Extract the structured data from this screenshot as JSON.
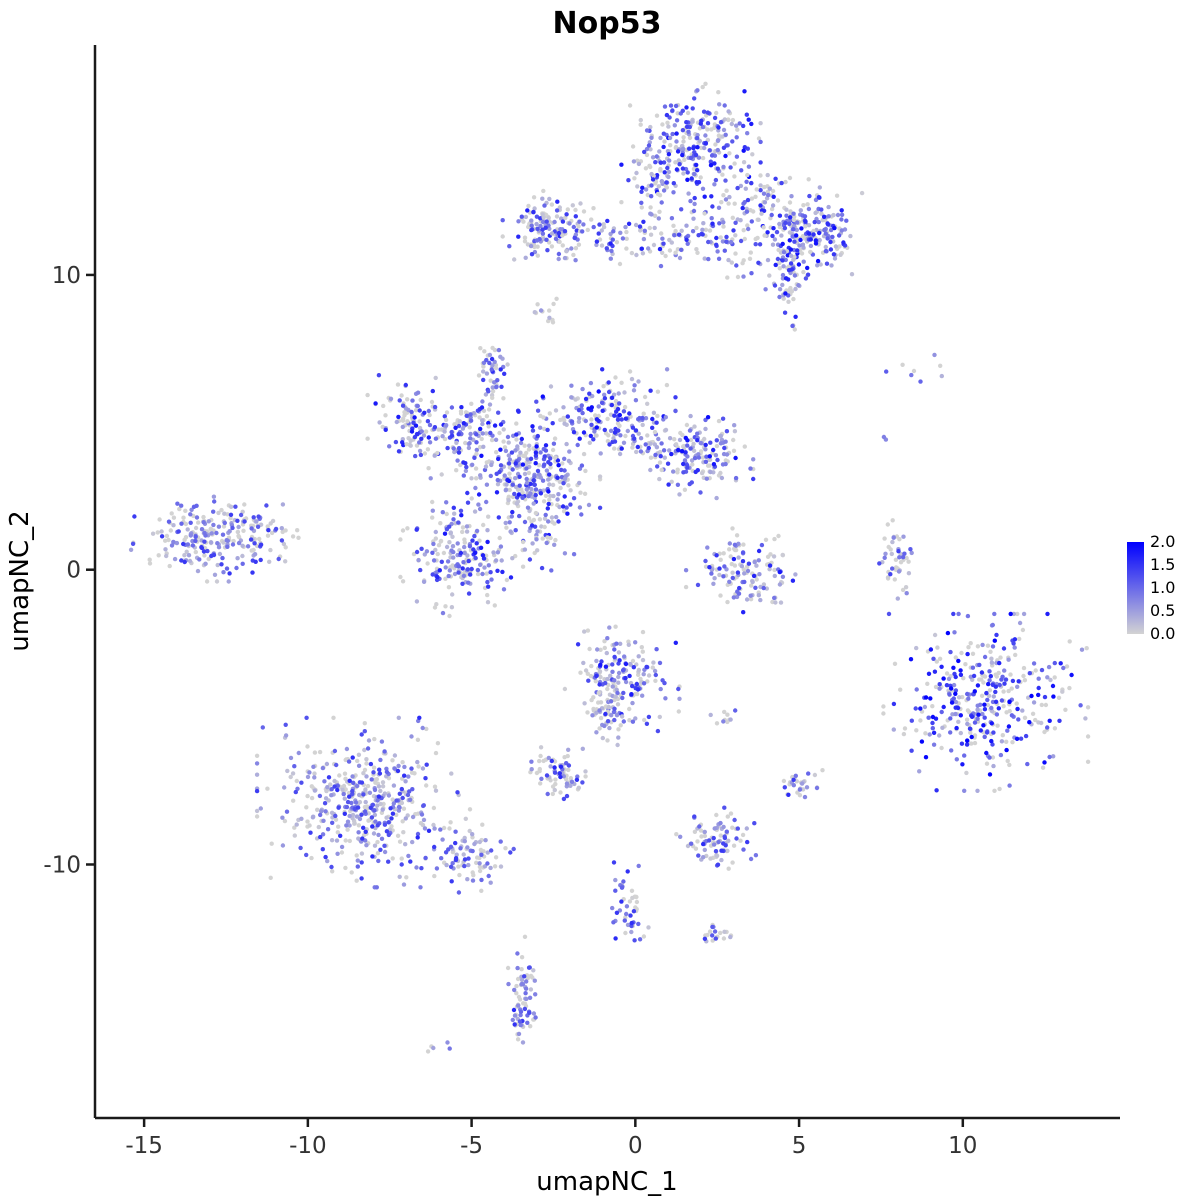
{
  "chart_data": {
    "type": "scatter",
    "title": "Nop53",
    "xlabel": "umapNC_1",
    "ylabel": "umapNC_2",
    "xlim": [
      -16.5,
      14.8
    ],
    "ylim": [
      -18.6,
      17.8
    ],
    "x_ticks": [
      {
        "label": "-15",
        "value": -15
      },
      {
        "label": "-10",
        "value": -10
      },
      {
        "label": "-5",
        "value": -5
      },
      {
        "label": "0",
        "value": 0
      },
      {
        "label": "5",
        "value": 5
      },
      {
        "label": "10",
        "value": 10
      }
    ],
    "y_ticks": [
      {
        "label": "-10",
        "value": -10
      },
      {
        "label": "0",
        "value": 0
      },
      {
        "label": "10",
        "value": 10
      }
    ],
    "grid": false,
    "legend": {
      "position": "right",
      "ticks": [
        {
          "label": "2.0",
          "value": 2.0
        },
        {
          "label": "1.5",
          "value": 1.5
        },
        {
          "label": "1.0",
          "value": 1.0
        },
        {
          "label": "0.5",
          "value": 0.5
        },
        {
          "label": "0.0",
          "value": 0.0
        }
      ]
    },
    "color_scale": {
      "low": "#D3D3D3",
      "high": "#0000FF",
      "domain": [
        0,
        2
      ]
    },
    "point_radius": 2.2,
    "seed": 12345,
    "clusters": [
      {
        "cx": 1.7,
        "cy": 14.3,
        "sx": 0.85,
        "sy": 0.95,
        "n": 280,
        "zero": 0.25,
        "max": 1.9,
        "pow": 1.2
      },
      {
        "cx": 0.6,
        "cy": 13.2,
        "sx": 0.4,
        "sy": 0.8,
        "n": 40,
        "zero": 0.3,
        "max": 1.7,
        "pow": 1.2
      },
      {
        "cx": 3.8,
        "cy": 12.4,
        "sx": 0.8,
        "sy": 0.55,
        "n": 90,
        "zero": 0.3,
        "max": 1.7,
        "pow": 1.2
      },
      {
        "cx": 5.3,
        "cy": 11.4,
        "sx": 0.65,
        "sy": 0.55,
        "n": 190,
        "zero": 0.22,
        "max": 1.9,
        "pow": 1.1
      },
      {
        "cx": -2.7,
        "cy": 11.6,
        "sx": 0.55,
        "sy": 0.5,
        "n": 130,
        "zero": 0.3,
        "max": 1.7,
        "pow": 1.2
      },
      {
        "cx": -0.3,
        "cy": 11.3,
        "sx": 1.5,
        "sy": 0.4,
        "n": 100,
        "zero": 0.3,
        "max": 1.7,
        "pow": 1.2
      },
      {
        "cx": 2.2,
        "cy": 11.3,
        "sx": 0.9,
        "sy": 0.4,
        "n": 60,
        "zero": 0.3,
        "max": 1.7,
        "pow": 1.2
      },
      {
        "cx": 4.7,
        "cy": 9.9,
        "sx": 0.3,
        "sy": 0.7,
        "n": 70,
        "zero": 0.3,
        "max": 1.8,
        "pow": 1.2
      },
      {
        "cx": 3.3,
        "cy": 10.4,
        "sx": 0.5,
        "sy": 0.3,
        "n": 15,
        "zero": 0.4,
        "max": 1.4,
        "pow": 1.2
      },
      {
        "cx": -2.8,
        "cy": 8.6,
        "sx": 0.2,
        "sy": 0.35,
        "n": 12,
        "zero": 0.4,
        "max": 1.5,
        "pow": 1.2
      },
      {
        "cx": -4.4,
        "cy": 7.1,
        "sx": 0.2,
        "sy": 0.3,
        "n": 25,
        "zero": 0.35,
        "max": 1.6,
        "pow": 1.2
      },
      {
        "cx": -4.4,
        "cy": 6.2,
        "sx": 0.15,
        "sy": 0.5,
        "n": 25,
        "zero": 0.35,
        "max": 1.6,
        "pow": 1.2
      },
      {
        "cx": -6.8,
        "cy": 5.1,
        "sx": 0.55,
        "sy": 0.6,
        "n": 100,
        "zero": 0.3,
        "max": 1.8,
        "pow": 1.2
      },
      {
        "cx": -5.3,
        "cy": 4.6,
        "sx": 0.7,
        "sy": 0.6,
        "n": 130,
        "zero": 0.3,
        "max": 1.8,
        "pow": 1.2
      },
      {
        "cx": -3.2,
        "cy": 3.3,
        "sx": 0.85,
        "sy": 0.85,
        "n": 300,
        "zero": 0.28,
        "max": 1.9,
        "pow": 1.2
      },
      {
        "cx": -0.9,
        "cy": 5.3,
        "sx": 0.85,
        "sy": 0.6,
        "n": 170,
        "zero": 0.28,
        "max": 1.9,
        "pow": 1.2
      },
      {
        "cx": 0.5,
        "cy": 4.3,
        "sx": 0.7,
        "sy": 0.45,
        "n": 70,
        "zero": 0.3,
        "max": 1.7,
        "pow": 1.2
      },
      {
        "cx": 2.1,
        "cy": 3.8,
        "sx": 0.6,
        "sy": 0.55,
        "n": 130,
        "zero": 0.28,
        "max": 1.9,
        "pow": 1.2
      },
      {
        "cx": -5.3,
        "cy": 0.4,
        "sx": 0.75,
        "sy": 0.8,
        "n": 200,
        "zero": 0.3,
        "max": 1.8,
        "pow": 1.2
      },
      {
        "cx": -2.9,
        "cy": 1.6,
        "sx": 0.5,
        "sy": 0.65,
        "n": 60,
        "zero": 0.35,
        "max": 1.6,
        "pow": 1.2
      },
      {
        "cx": -12.8,
        "cy": 1.1,
        "sx": 1.05,
        "sy": 0.6,
        "n": 260,
        "zero": 0.3,
        "max": 1.5,
        "pow": 1.2
      },
      {
        "cx": 3.3,
        "cy": -0.1,
        "sx": 0.7,
        "sy": 0.6,
        "n": 130,
        "zero": 0.3,
        "max": 1.8,
        "pow": 1.2
      },
      {
        "cx": 8.0,
        "cy": 0.3,
        "sx": 0.25,
        "sy": 0.55,
        "n": 45,
        "zero": 0.4,
        "max": 1.4,
        "pow": 1.2
      },
      {
        "cx": 8.6,
        "cy": 6.7,
        "sx": 1.1,
        "sy": 0.3,
        "n": 8,
        "zero": 0.4,
        "max": 1.6,
        "pow": 1.2
      },
      {
        "cx": 7.7,
        "cy": 4.3,
        "sx": 0.15,
        "sy": 0.15,
        "n": 2,
        "zero": 0.3,
        "max": 1.6,
        "pow": 1.2
      },
      {
        "cx": 10.7,
        "cy": -4.5,
        "sx": 1.25,
        "sy": 1.2,
        "n": 380,
        "zero": 0.32,
        "max": 2.0,
        "pow": 0.9
      },
      {
        "cx": -0.4,
        "cy": -3.6,
        "sx": 0.7,
        "sy": 0.75,
        "n": 170,
        "zero": 0.3,
        "max": 1.8,
        "pow": 1.2
      },
      {
        "cx": -0.8,
        "cy": -5.0,
        "sx": 0.3,
        "sy": 0.5,
        "n": 50,
        "zero": 0.35,
        "max": 1.6,
        "pow": 1.2
      },
      {
        "cx": 2.8,
        "cy": -5.0,
        "sx": 0.2,
        "sy": 0.15,
        "n": 10,
        "zero": 0.4,
        "max": 1.5,
        "pow": 1.2
      },
      {
        "cx": -8.3,
        "cy": -7.9,
        "sx": 1.3,
        "sy": 1.15,
        "n": 460,
        "zero": 0.32,
        "max": 1.6,
        "pow": 1.2
      },
      {
        "cx": -5.3,
        "cy": -9.7,
        "sx": 0.7,
        "sy": 0.5,
        "n": 90,
        "zero": 0.35,
        "max": 1.5,
        "pow": 1.2
      },
      {
        "cx": -2.4,
        "cy": -6.9,
        "sx": 0.4,
        "sy": 0.35,
        "n": 70,
        "zero": 0.35,
        "max": 1.7,
        "pow": 1.2
      },
      {
        "cx": 5.0,
        "cy": -7.2,
        "sx": 0.3,
        "sy": 0.25,
        "n": 30,
        "zero": 0.35,
        "max": 1.6,
        "pow": 1.2
      },
      {
        "cx": 2.5,
        "cy": -9.2,
        "sx": 0.5,
        "sy": 0.45,
        "n": 90,
        "zero": 0.33,
        "max": 1.7,
        "pow": 1.2
      },
      {
        "cx": -0.2,
        "cy": -11.4,
        "sx": 0.3,
        "sy": 0.65,
        "n": 45,
        "zero": 0.4,
        "max": 1.6,
        "pow": 1.2
      },
      {
        "cx": 2.4,
        "cy": -12.4,
        "sx": 0.25,
        "sy": 0.2,
        "n": 20,
        "zero": 0.4,
        "max": 1.6,
        "pow": 1.2
      },
      {
        "cx": -3.4,
        "cy": -14.2,
        "sx": 0.25,
        "sy": 0.75,
        "n": 55,
        "zero": 0.4,
        "max": 1.5,
        "pow": 1.2
      },
      {
        "cx": -3.5,
        "cy": -15.2,
        "sx": 0.2,
        "sy": 0.25,
        "n": 20,
        "zero": 0.3,
        "max": 1.6,
        "pow": 1.2
      },
      {
        "cx": -6.1,
        "cy": -16.1,
        "sx": 0.2,
        "sy": 0.15,
        "n": 5,
        "zero": 0.5,
        "max": 1.0,
        "pow": 1.2
      }
    ]
  }
}
